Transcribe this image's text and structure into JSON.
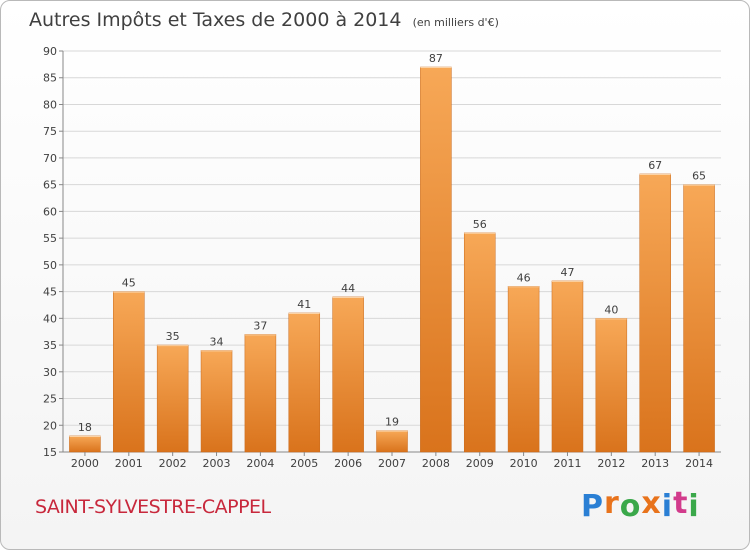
{
  "title": "Autres Impôts et Taxes de 2000 à 2014",
  "unit_label": "(en milliers d'€)",
  "commune": "SAINT-SYLVESTRE-CAPPEL",
  "logo": {
    "letters": [
      "P",
      "r",
      "o",
      "x",
      "i",
      "t",
      "i"
    ],
    "colors": [
      "#2a7fd4",
      "#e8731c",
      "#3aa84a",
      "#e8731c",
      "#2a7fd4",
      "#d23b8c",
      "#3aa84a"
    ]
  },
  "colors": {
    "bar_light": "#f7a857",
    "bar_dark": "#d9731c",
    "bar_stroke": "#c8691a",
    "grid": "#d8d8d8",
    "axis_text": "#404040"
  },
  "chart_data": {
    "type": "bar",
    "title": "Autres Impôts et Taxes de 2000 à 2014",
    "subtitle": "(en milliers d'€)",
    "categories": [
      "2000",
      "2001",
      "2002",
      "2003",
      "2004",
      "2005",
      "2006",
      "2007",
      "2008",
      "2009",
      "2010",
      "2011",
      "2012",
      "2013",
      "2014"
    ],
    "values": [
      18,
      45,
      35,
      34,
      37,
      41,
      44,
      19,
      87,
      56,
      46,
      47,
      40,
      67,
      65
    ],
    "ylim": [
      15,
      90
    ],
    "yticks": [
      15,
      20,
      25,
      30,
      35,
      40,
      45,
      50,
      55,
      60,
      65,
      70,
      75,
      80,
      85,
      90
    ],
    "grid": true,
    "data_labels": true
  }
}
